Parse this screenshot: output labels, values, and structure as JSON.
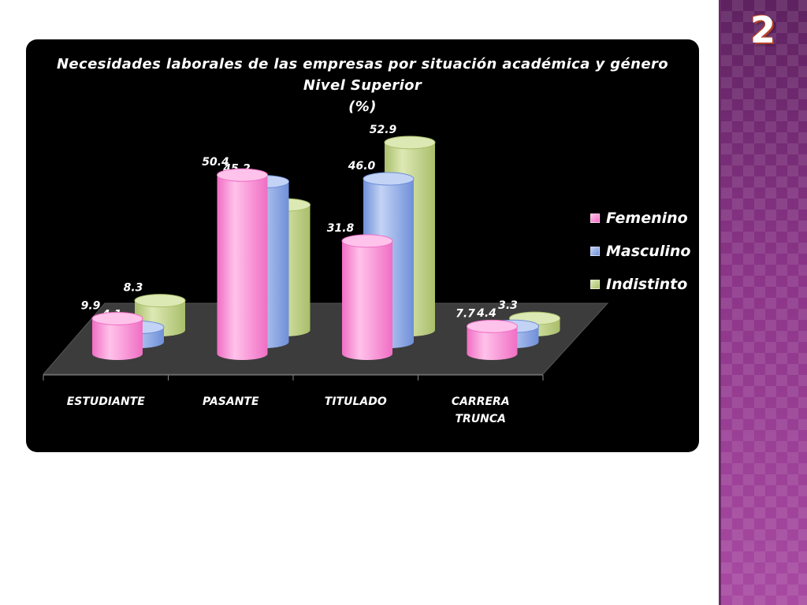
{
  "slide": {
    "number": "2"
  },
  "colors": {
    "panel": "#000000",
    "band": "#9a3f93"
  },
  "chart_data": {
    "type": "bar",
    "variant": "3d-cylinder",
    "title_lines": [
      "Necesidades laborales de las empresas por situación académica y género",
      "Nivel Superior",
      "(%)"
    ],
    "categories": [
      {
        "lines": [
          "ESTUDIANTE"
        ]
      },
      {
        "lines": [
          "PASANTE"
        ]
      },
      {
        "lines": [
          "TITULADO"
        ]
      },
      {
        "lines": [
          "CARRERA",
          "TRUNCA"
        ]
      }
    ],
    "series": [
      {
        "name": "Femenino",
        "color": "#f06ec4",
        "light": "#ffc2ea",
        "values": [
          9.9,
          50.4,
          31.8,
          7.7
        ]
      },
      {
        "name": "Masculino",
        "color": "#6f8fd8",
        "light": "#c3d3f5",
        "values": [
          4.1,
          45.2,
          46.0,
          4.4
        ]
      },
      {
        "name": "Indistinto",
        "color": "#a9be6a",
        "light": "#dde9b4",
        "values": [
          8.3,
          35.3,
          52.9,
          3.3
        ]
      }
    ],
    "value_labels": [
      [
        "9.9",
        "50.4",
        "31.8",
        "7.7"
      ],
      [
        "4.1",
        "45.2",
        "46.0",
        "4.4"
      ],
      [
        "8.3",
        "35.3",
        "52.9",
        "3.3"
      ]
    ],
    "ylim": [
      0,
      60
    ],
    "legend_position": "right",
    "grid": false
  }
}
